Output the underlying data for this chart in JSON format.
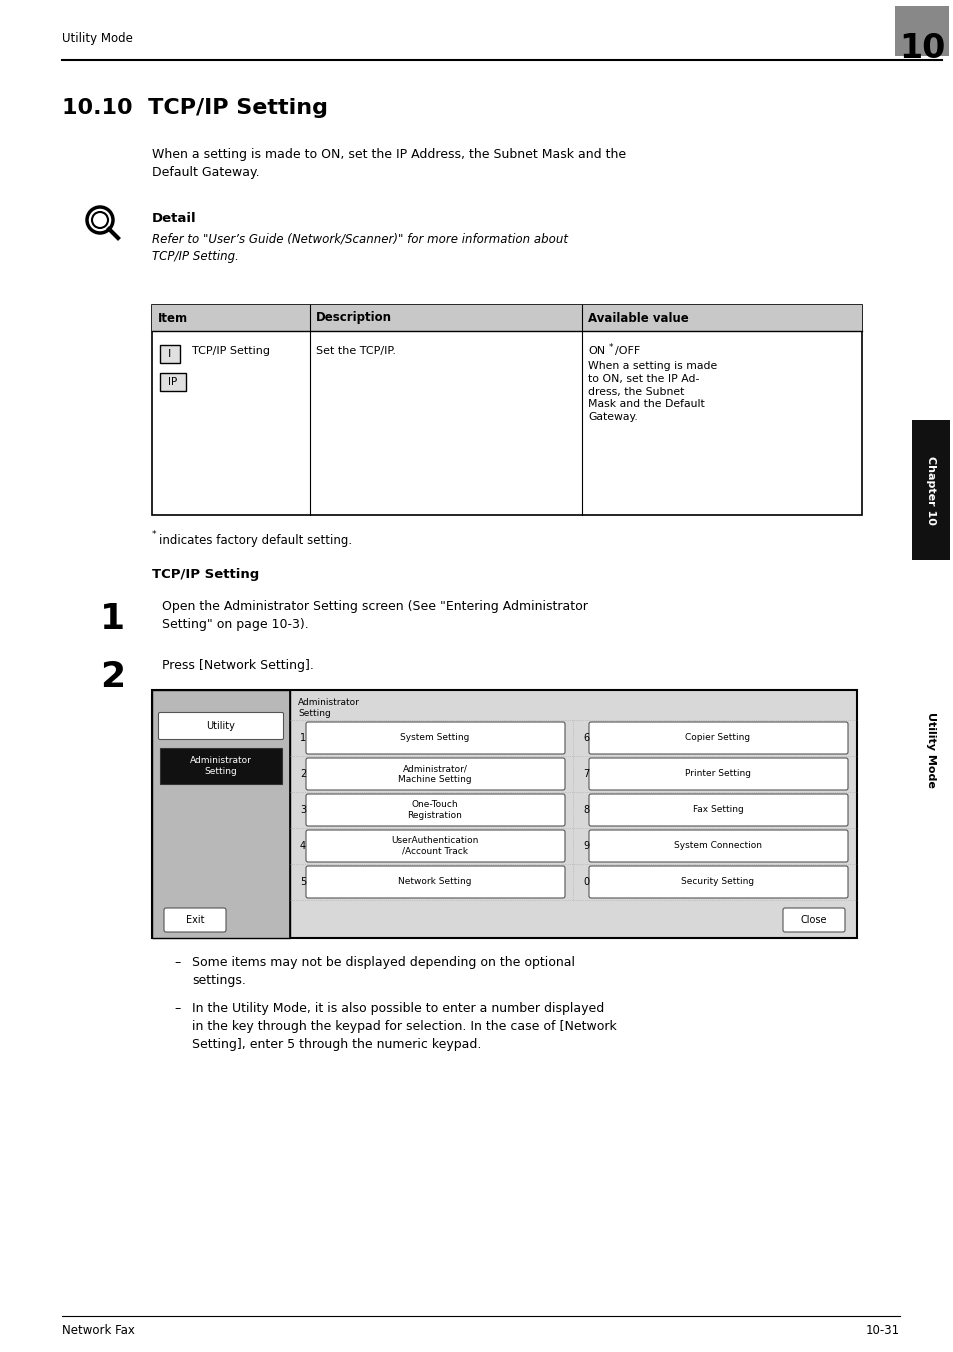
{
  "page_title": "Utility Mode",
  "chapter_number": "10",
  "section_title": "10.10  TCP/IP Setting",
  "intro_text": "When a setting is made to ON, set the IP Address, the Subnet Mask and the\nDefault Gateway.",
  "detail_label": "Detail",
  "detail_italic": "Refer to \"User’s Guide (Network/Scanner)\" for more information about\nTCP/IP Setting.",
  "table_headers": [
    "Item",
    "Description",
    "Available value"
  ],
  "table_row_item": "TCP/IP Setting",
  "table_row_desc": "Set the TCP/IP.",
  "footnote": "indicates factory default setting.",
  "subsection_title": "TCP/IP Setting",
  "step1_num": "1",
  "step1_text": "Open the Administrator Setting screen (See \"Entering Administrator\nSetting\" on page 10-3).",
  "step2_num": "2",
  "step2_text": "Press [Network Setting].",
  "bullet1": "Some items may not be displayed depending on the optional\nsettings.",
  "bullet2": "In the Utility Mode, it is also possible to enter a number displayed\nin the key through the keypad for selection. In the case of [Network\nSetting], enter 5 through the numeric keypad.",
  "footer_left": "Network Fax",
  "footer_right": "10-31",
  "sidebar_chapter": "Chapter 10",
  "sidebar_mode": "Utility Mode",
  "bg_color": "#ffffff"
}
